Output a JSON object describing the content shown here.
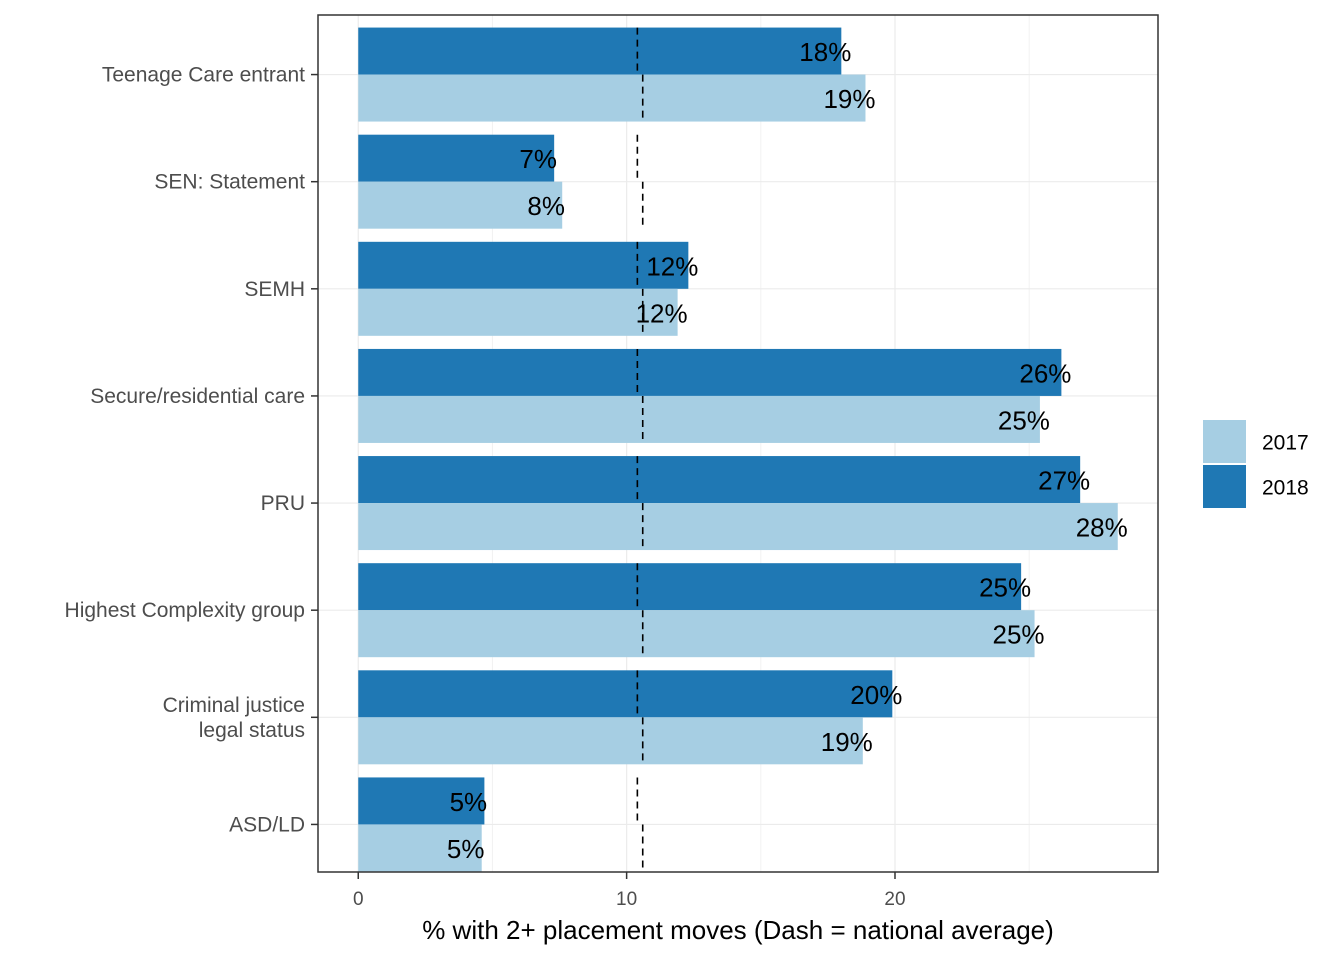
{
  "chart_data": {
    "type": "bar",
    "orientation": "horizontal",
    "title": "",
    "xlabel": "% with 2+ placement moves (Dash = national average)",
    "ylabel": "",
    "xlim": [
      -1.5,
      29.8
    ],
    "x_ticks": [
      0,
      10,
      20
    ],
    "grid": true,
    "legend_position": "right",
    "categories": [
      [
        "Teenage Care entrant"
      ],
      [
        "SEN: Statement"
      ],
      [
        "SEMH"
      ],
      [
        "Secure/residential care"
      ],
      [
        "PRU"
      ],
      [
        "Highest Complexity group"
      ],
      [
        "Criminal justice",
        "legal status"
      ],
      [
        "ASD/LD"
      ]
    ],
    "series": [
      {
        "name": "2017",
        "color": "#a6cee3",
        "values": [
          18.9,
          7.6,
          11.9,
          25.4,
          28.3,
          25.2,
          18.8,
          4.6
        ],
        "labels": [
          "19%",
          "8%",
          "12%",
          "25%",
          "28%",
          "25%",
          "19%",
          "5%"
        ],
        "national_average": 10.6
      },
      {
        "name": "2018",
        "color": "#1f78b4",
        "values": [
          18.0,
          7.3,
          12.3,
          26.2,
          26.9,
          24.7,
          19.9,
          4.7
        ],
        "labels": [
          "18%",
          "7%",
          "12%",
          "26%",
          "27%",
          "25%",
          "20%",
          "5%"
        ],
        "national_average": 10.4
      }
    ]
  }
}
